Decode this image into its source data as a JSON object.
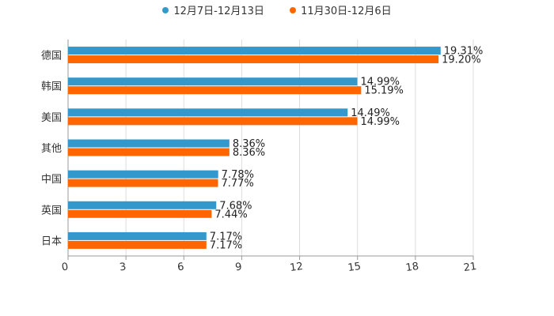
{
  "chart_data": {
    "type": "bar",
    "orientation": "horizontal",
    "categories": [
      "德国",
      "韩国",
      "美国",
      "其他",
      "中国",
      "英国",
      "日本"
    ],
    "series": [
      {
        "name": "12月7日-12月13日",
        "color": "#3399CC",
        "values": [
          19.31,
          14.99,
          14.49,
          8.36,
          7.78,
          7.68,
          7.17
        ],
        "labels": [
          "19.31%",
          "14.99%",
          "14.49%",
          "8.36%",
          "7.78%",
          "7.68%",
          "7.17%"
        ]
      },
      {
        "name": "11月30日-12月6日",
        "color": "#FF6600",
        "values": [
          19.2,
          15.19,
          14.99,
          8.36,
          7.77,
          7.44,
          7.17
        ],
        "labels": [
          "19.20%",
          "15.19%",
          "14.99%",
          "8.36%",
          "7.77%",
          "7.44%",
          "7.17%"
        ]
      }
    ],
    "xlim": [
      0,
      21
    ],
    "xticks": [
      "0",
      "3",
      "6",
      "9",
      "12",
      "15",
      "18",
      "21"
    ],
    "grid": "vertical",
    "legend_position": "top-center"
  }
}
